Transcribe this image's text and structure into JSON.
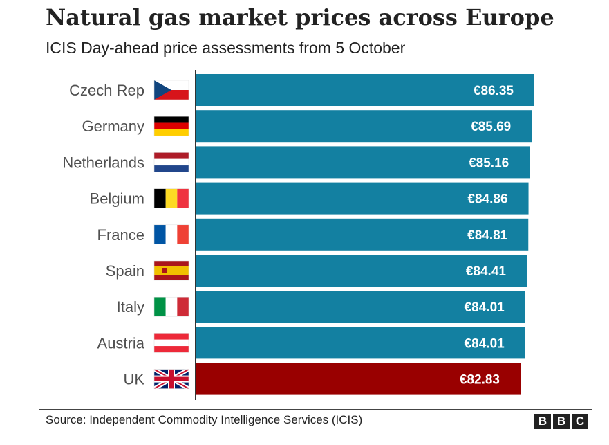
{
  "chart_data": {
    "type": "bar",
    "orientation": "horizontal",
    "title": "Natural gas market prices across Europe",
    "subtitle": "ICIS Day-ahead price assessments from 5 October",
    "categories": [
      "Czech Rep",
      "Germany",
      "Netherlands",
      "Belgium",
      "France",
      "Spain",
      "Italy",
      "Austria",
      "UK"
    ],
    "values": [
      86.35,
      85.69,
      85.16,
      84.86,
      84.81,
      84.41,
      84.01,
      84.01,
      82.83
    ],
    "value_labels": [
      "€86.35",
      "€85.69",
      "€85.16",
      "€84.86",
      "€84.81",
      "€84.41",
      "€84.01",
      "€84.01",
      "€82.83"
    ],
    "bar_colors": [
      "#1380a1",
      "#1380a1",
      "#1380a1",
      "#1380a1",
      "#1380a1",
      "#1380a1",
      "#1380a1",
      "#1380a1",
      "#990000"
    ],
    "flags": [
      "czech-flag",
      "germany-flag",
      "netherlands-flag",
      "belgium-flag",
      "france-flag",
      "spain-flag",
      "italy-flag",
      "austria-flag",
      "uk-flag"
    ],
    "grid": false,
    "legend": "none"
  },
  "footer": {
    "source": "Source: Independent Commodity Intelligence Services (ICIS)",
    "logo": [
      "B",
      "B",
      "C"
    ]
  }
}
